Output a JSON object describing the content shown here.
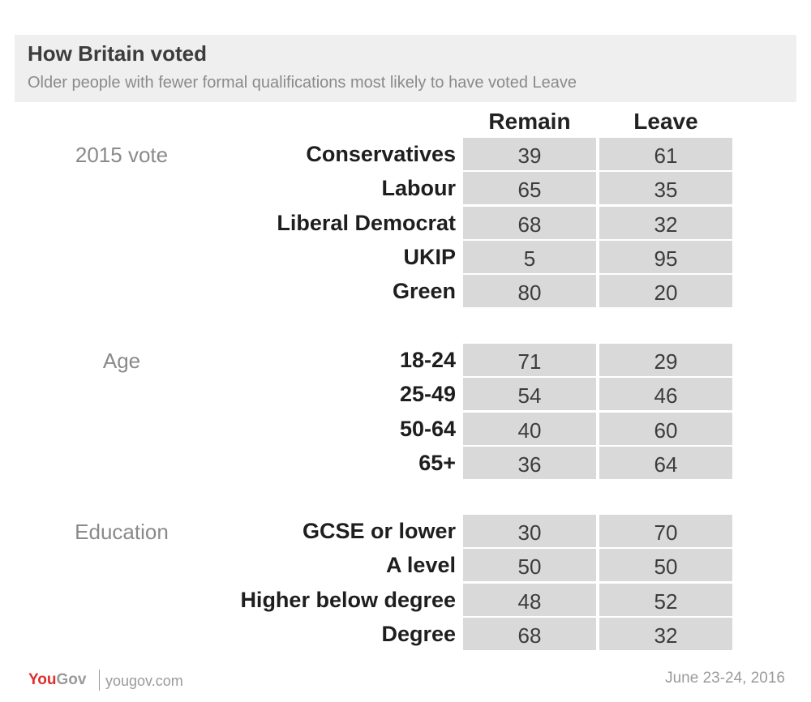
{
  "header": {
    "title": "How Britain voted",
    "subtitle": "Older people with fewer formal qualifications most likely to have voted Leave"
  },
  "columns": [
    "Remain",
    "Leave"
  ],
  "groups": [
    {
      "label": "2015 vote",
      "rows": [
        {
          "label": "Conservatives",
          "remain": 39,
          "leave": 61
        },
        {
          "label": "Labour",
          "remain": 65,
          "leave": 35
        },
        {
          "label": "Liberal Democrat",
          "remain": 68,
          "leave": 32
        },
        {
          "label": "UKIP",
          "remain": 5,
          "leave": 95
        },
        {
          "label": "Green",
          "remain": 80,
          "leave": 20
        }
      ]
    },
    {
      "label": "Age",
      "rows": [
        {
          "label": "18-24",
          "remain": 71,
          "leave": 29
        },
        {
          "label": "25-49",
          "remain": 54,
          "leave": 46
        },
        {
          "label": "50-64",
          "remain": 40,
          "leave": 60
        },
        {
          "label": "65+",
          "remain": 36,
          "leave": 64
        }
      ]
    },
    {
      "label": "Education",
      "rows": [
        {
          "label": "GCSE or lower",
          "remain": 30,
          "leave": 70
        },
        {
          "label": "A level",
          "remain": 50,
          "leave": 50
        },
        {
          "label": "Higher below degree",
          "remain": 48,
          "leave": 52
        },
        {
          "label": "Degree",
          "remain": 68,
          "leave": 32
        }
      ]
    }
  ],
  "footer": {
    "logo_you": "You",
    "logo_gov": "Gov",
    "site": "yougov.com",
    "date": "June 23-24, 2016"
  },
  "colors": {
    "header_bg": "#efefef",
    "cell_bg": "#d9d9d9",
    "logo_red": "#e02e2e",
    "muted_text": "#8a8a8a"
  },
  "chart_data": {
    "type": "table",
    "title": "How Britain voted",
    "subtitle": "Older people with fewer formal qualifications most likely to have voted Leave",
    "columns": [
      "Remain",
      "Leave"
    ],
    "groups": [
      "2015 vote",
      "Age",
      "Education"
    ],
    "categories": [
      "Conservatives",
      "Labour",
      "Liberal Democrat",
      "UKIP",
      "Green",
      "18-24",
      "25-49",
      "50-64",
      "65+",
      "GCSE or lower",
      "A level",
      "Higher below degree",
      "Degree"
    ],
    "series": [
      {
        "name": "Remain",
        "values": [
          39,
          65,
          68,
          5,
          80,
          71,
          54,
          40,
          36,
          30,
          50,
          48,
          68
        ]
      },
      {
        "name": "Leave",
        "values": [
          61,
          35,
          32,
          95,
          20,
          29,
          46,
          60,
          64,
          70,
          50,
          52,
          32
        ]
      }
    ]
  }
}
